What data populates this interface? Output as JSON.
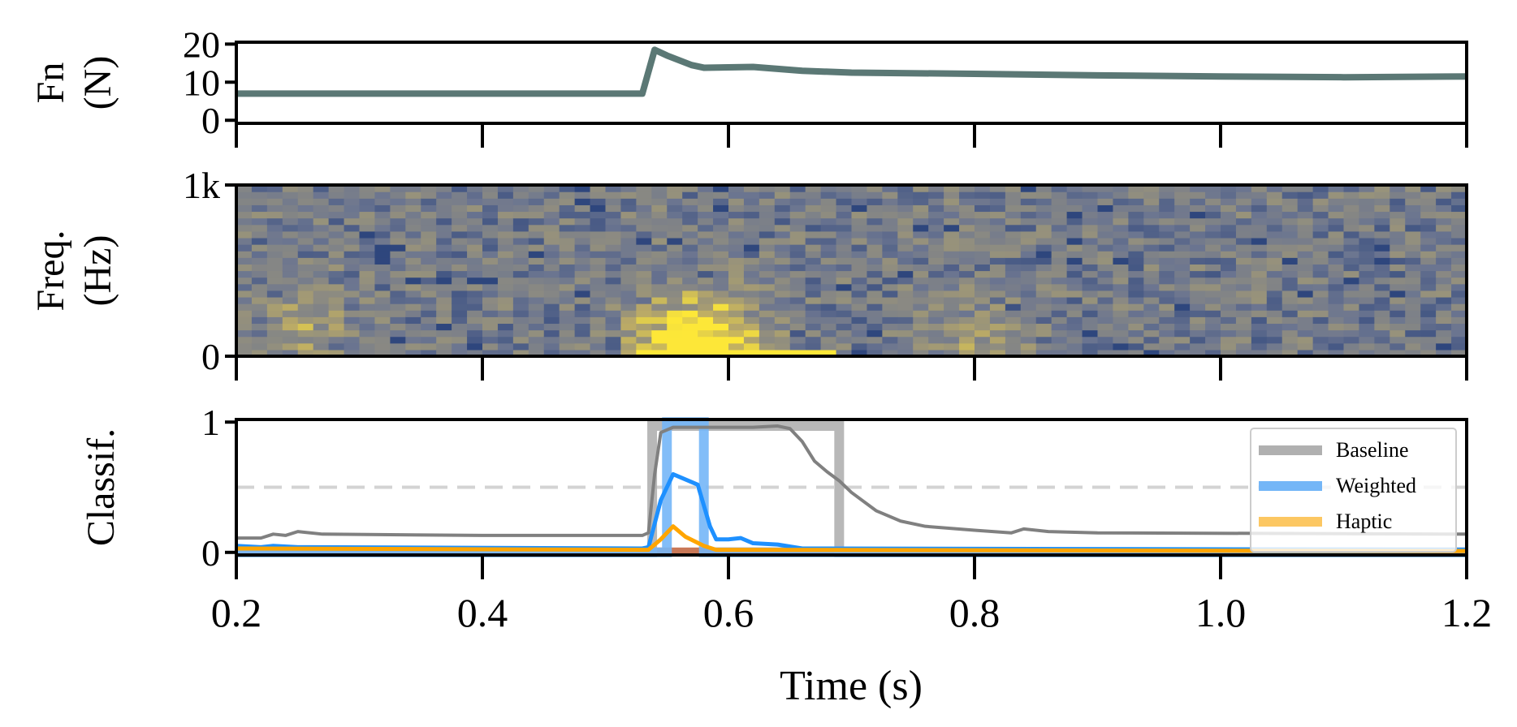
{
  "chart_data": [
    {
      "type": "line",
      "ylabel": "Fn\n(N)",
      "ylabel_lines": [
        "Fn",
        "(N)"
      ],
      "ylim": [
        -0.8,
        20.5
      ],
      "yticks": [
        "0",
        "10",
        "20"
      ],
      "ytick_values": [
        0,
        10,
        20
      ],
      "color": "#5b7875",
      "x": [
        0.2,
        0.53,
        0.54,
        0.55,
        0.57,
        0.58,
        0.62,
        0.66,
        0.7,
        0.8,
        0.9,
        1.0,
        1.1,
        1.2
      ],
      "y": [
        7,
        7,
        18.5,
        17,
        14.5,
        13.8,
        14,
        13,
        12.5,
        12.2,
        11.8,
        11.5,
        11.3,
        11.5
      ]
    },
    {
      "type": "heatmap",
      "ylabel_lines": [
        "Freq.",
        "(Hz)"
      ],
      "ylim": [
        0,
        1000
      ],
      "yticks": [
        "0",
        "1k"
      ],
      "ytick_values": [
        0,
        1000
      ],
      "colormap": [
        "#1f3a78",
        "#6b7590",
        "#8b8a82",
        "#b8a868",
        "#fde738"
      ],
      "hotspots": [
        {
          "t": 0.56,
          "f": 100,
          "strength": 1.0
        },
        {
          "t": 0.6,
          "f": 40,
          "strength": 1.0
        },
        {
          "t": 0.25,
          "f": 150,
          "strength": 0.5
        },
        {
          "t": 0.8,
          "f": 40,
          "strength": 0.4
        }
      ]
    },
    {
      "type": "line",
      "ylabel_lines": [
        "Classif."
      ],
      "ylim": [
        -0.02,
        1.02
      ],
      "yticks": [
        "0",
        "1"
      ],
      "ytick_values": [
        0,
        1
      ],
      "xlabel": "Time (s)",
      "xlim": [
        0.2,
        1.2
      ],
      "xticks": [
        "0.2",
        "0.4",
        "0.6",
        "0.8",
        "1.0",
        "1.2"
      ],
      "xtick_values": [
        0.2,
        0.4,
        0.6,
        0.8,
        1.0,
        1.2
      ],
      "threshold": 0.5,
      "legend": {
        "placement": "right",
        "entries": [
          {
            "name": "Baseline",
            "color": "#b0b0b0"
          },
          {
            "name": "Weighted",
            "color": "#74b6f7"
          },
          {
            "name": "Haptic",
            "color": "#fcc762"
          }
        ]
      },
      "series": [
        {
          "name": "Baseline",
          "color": "#808080",
          "x": [
            0.2,
            0.22,
            0.23,
            0.24,
            0.25,
            0.27,
            0.4,
            0.53,
            0.535,
            0.54,
            0.545,
            0.555,
            0.62,
            0.64,
            0.65,
            0.66,
            0.67,
            0.68,
            0.69,
            0.7,
            0.72,
            0.74,
            0.76,
            0.8,
            0.83,
            0.84,
            0.86,
            0.9,
            1.2
          ],
          "y": [
            0.11,
            0.11,
            0.14,
            0.13,
            0.16,
            0.14,
            0.13,
            0.13,
            0.15,
            0.6,
            0.92,
            0.96,
            0.96,
            0.97,
            0.95,
            0.85,
            0.7,
            0.62,
            0.55,
            0.46,
            0.32,
            0.24,
            0.2,
            0.17,
            0.15,
            0.18,
            0.16,
            0.15,
            0.14
          ]
        },
        {
          "name": "Weighted",
          "color": "#1e90ff",
          "x": [
            0.2,
            0.22,
            0.23,
            0.25,
            0.53,
            0.535,
            0.545,
            0.555,
            0.575,
            0.585,
            0.59,
            0.6,
            0.61,
            0.62,
            0.64,
            0.66,
            1.2
          ],
          "y": [
            0.05,
            0.04,
            0.05,
            0.04,
            0.03,
            0.04,
            0.4,
            0.6,
            0.52,
            0.2,
            0.1,
            0.1,
            0.11,
            0.07,
            0.06,
            0.03,
            0.02
          ]
        },
        {
          "name": "Haptic",
          "color": "#ffa500",
          "x": [
            0.2,
            0.53,
            0.535,
            0.545,
            0.555,
            0.565,
            0.58,
            0.59,
            1.2
          ],
          "y": [
            0.03,
            0.02,
            0.02,
            0.1,
            0.2,
            0.12,
            0.05,
            0.02,
            0.01
          ]
        }
      ],
      "predictions": [
        {
          "name": "Baseline",
          "color": "#b0b0b0",
          "start": 0.538,
          "end": 0.69,
          "value": 0.97
        },
        {
          "name": "Weighted",
          "color": "#74b6f7",
          "start": 0.55,
          "end": 0.58,
          "value": 1.0
        }
      ]
    }
  ]
}
